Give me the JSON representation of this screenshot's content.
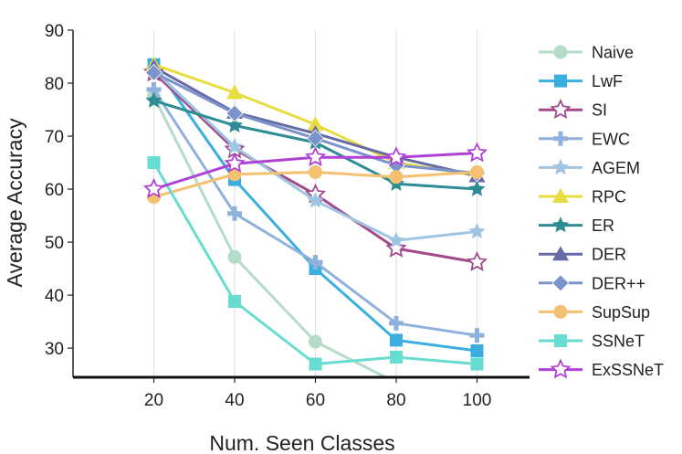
{
  "chart_data": {
    "type": "line",
    "xlabel": "Num. Seen Classes",
    "ylabel": "Average Accuracy",
    "x": [
      20,
      40,
      60,
      80,
      100
    ],
    "xlim": [
      0,
      113
    ],
    "ylim": [
      24.5,
      90
    ],
    "xticks": [
      20,
      40,
      60,
      80,
      100
    ],
    "yticks": [
      30,
      40,
      50,
      60,
      70,
      80,
      90
    ],
    "grid": "vertical",
    "legend_position": "right",
    "series": [
      {
        "name": "Naive",
        "color": "#b4dcc8",
        "marker": "circle",
        "values": [
          77.5,
          47.2,
          31.2,
          23.5,
          null
        ]
      },
      {
        "name": "LwF",
        "color": "#3aaee0",
        "marker": "square",
        "values": [
          83.5,
          61.8,
          45.0,
          31.5,
          29.5
        ]
      },
      {
        "name": "SI",
        "color": "#a24a8c",
        "marker": "star-open",
        "values": [
          82.0,
          67.5,
          59.0,
          48.8,
          46.2
        ]
      },
      {
        "name": "EWC",
        "color": "#8fb2dc",
        "marker": "plus",
        "values": [
          78.8,
          55.4,
          46.2,
          34.7,
          32.4
        ]
      },
      {
        "name": "AGEM",
        "color": "#9fc5e0",
        "marker": "star",
        "values": [
          82.5,
          68.0,
          57.8,
          50.3,
          52.0
        ]
      },
      {
        "name": "RPC",
        "color": "#e8dd40",
        "marker": "triangle",
        "values": [
          83.5,
          78.2,
          72.2,
          65.0,
          62.5
        ]
      },
      {
        "name": "ER",
        "color": "#2d8c94",
        "marker": "star",
        "values": [
          76.7,
          72.0,
          68.8,
          61.0,
          60.0
        ]
      },
      {
        "name": "DER",
        "color": "#666aa6",
        "marker": "triangle",
        "values": [
          83.0,
          74.5,
          70.5,
          66.0,
          62.5
        ]
      },
      {
        "name": "DER++",
        "color": "#7b93cb",
        "marker": "diamond",
        "values": [
          82.0,
          74.3,
          69.6,
          64.5,
          63.0
        ]
      },
      {
        "name": "SupSup",
        "color": "#f5c070",
        "marker": "circle",
        "values": [
          58.5,
          62.8,
          63.2,
          62.3,
          63.2
        ]
      },
      {
        "name": "SSNeT",
        "color": "#66ddd0",
        "marker": "square",
        "values": [
          65.0,
          38.8,
          27.0,
          28.3,
          27.0
        ]
      },
      {
        "name": "ExSSNeT",
        "color": "#b041d6",
        "marker": "star-open",
        "values": [
          60.0,
          64.8,
          66.0,
          66.0,
          66.8
        ]
      }
    ]
  }
}
